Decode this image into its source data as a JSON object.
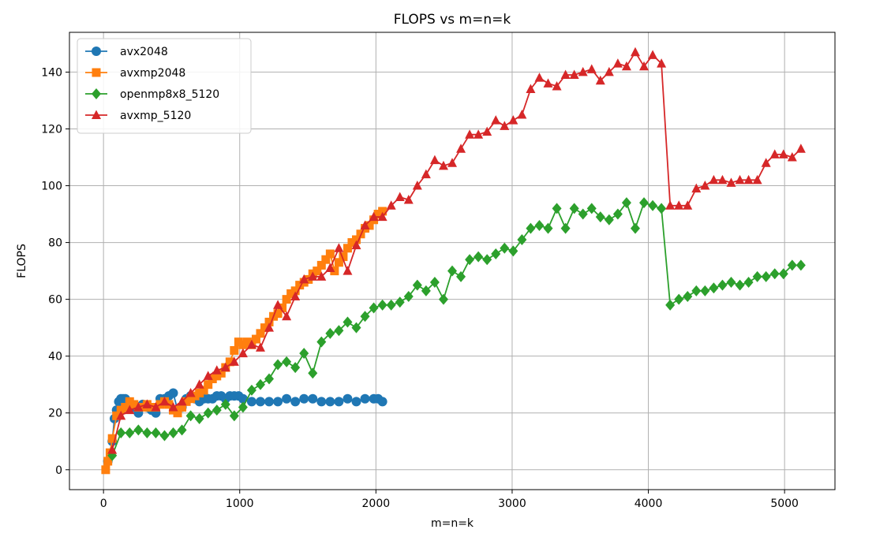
{
  "chart_data": {
    "type": "line",
    "title": "FLOPS vs m=n=k",
    "xlabel": "m=n=k",
    "ylabel": "FLOPS",
    "xlim": [
      -250,
      5370
    ],
    "ylim": [
      -7,
      154
    ],
    "xticks": [
      0,
      1000,
      2000,
      3000,
      4000,
      5000
    ],
    "xtick_labels": [
      "0",
      "1000",
      "2000",
      "3000",
      "4000",
      "5000"
    ],
    "yticks": [
      0,
      20,
      40,
      60,
      80,
      100,
      120,
      140
    ],
    "ytick_labels": [
      "0",
      "20",
      "40",
      "60",
      "80",
      "100",
      "120",
      "140"
    ],
    "grid": true,
    "legend_position": "upper-left",
    "series": [
      {
        "name": "avx2048",
        "color": "#1f77b4",
        "marker": "circle",
        "x": [
          32,
          64,
          80,
          96,
          112,
          128,
          144,
          160,
          176,
          192,
          224,
          256,
          288,
          320,
          352,
          384,
          416,
          448,
          480,
          512,
          544,
          576,
          608,
          640,
          672,
          704,
          736,
          768,
          800,
          832,
          864,
          896,
          928,
          960,
          992,
          1024,
          1088,
          1152,
          1216,
          1280,
          1344,
          1408,
          1472,
          1536,
          1600,
          1664,
          1728,
          1792,
          1856,
          1920,
          1984,
          2016,
          2048
        ],
        "y": [
          3,
          10,
          18,
          21,
          24,
          25,
          25,
          25,
          24,
          23,
          22,
          20,
          23,
          22,
          21,
          20,
          25,
          25,
          26,
          27,
          21,
          22,
          25,
          26,
          25,
          24,
          25,
          25,
          25,
          26,
          26,
          25,
          26,
          26,
          26,
          25,
          24,
          24,
          24,
          24,
          25,
          24,
          25,
          25,
          24,
          24,
          24,
          25,
          24,
          25,
          25,
          25,
          24
        ]
      },
      {
        "name": "avxmp2048",
        "color": "#ff7f0e",
        "marker": "square",
        "x": [
          16,
          32,
          48,
          64,
          96,
          128,
          160,
          192,
          224,
          256,
          288,
          320,
          352,
          384,
          416,
          448,
          480,
          512,
          544,
          576,
          608,
          640,
          672,
          704,
          736,
          768,
          800,
          832,
          864,
          896,
          928,
          960,
          992,
          1024,
          1056,
          1088,
          1120,
          1152,
          1184,
          1216,
          1248,
          1280,
          1312,
          1344,
          1376,
          1408,
          1440,
          1472,
          1504,
          1536,
          1568,
          1600,
          1632,
          1664,
          1696,
          1728,
          1760,
          1792,
          1824,
          1856,
          1888,
          1920,
          1952,
          1984,
          2016,
          2048
        ],
        "y": [
          0,
          3,
          6,
          11,
          19,
          21,
          22,
          24,
          23,
          22,
          22,
          23,
          22,
          22,
          23,
          24,
          23,
          21,
          20,
          22,
          24,
          25,
          26,
          27,
          28,
          30,
          32,
          33,
          34,
          36,
          38,
          42,
          45,
          44,
          45,
          44,
          46,
          48,
          50,
          52,
          54,
          55,
          57,
          60,
          62,
          63,
          65,
          66,
          67,
          69,
          70,
          72,
          74,
          76,
          70,
          73,
          75,
          78,
          80,
          81,
          83,
          85,
          86,
          88,
          90,
          91
        ]
      },
      {
        "name": "openmp8x8_5120",
        "color": "#2ca02c",
        "marker": "diamond",
        "x": [
          64,
          128,
          192,
          256,
          320,
          384,
          448,
          512,
          576,
          640,
          704,
          768,
          832,
          896,
          960,
          1024,
          1088,
          1152,
          1216,
          1280,
          1344,
          1408,
          1472,
          1536,
          1600,
          1664,
          1728,
          1792,
          1856,
          1920,
          1984,
          2048,
          2112,
          2176,
          2240,
          2304,
          2368,
          2432,
          2496,
          2560,
          2624,
          2688,
          2752,
          2816,
          2880,
          2944,
          3008,
          3072,
          3136,
          3200,
          3264,
          3328,
          3392,
          3456,
          3520,
          3584,
          3648,
          3712,
          3776,
          3840,
          3904,
          3968,
          4032,
          4096,
          4160,
          4224,
          4288,
          4352,
          4416,
          4480,
          4544,
          4608,
          4672,
          4736,
          4800,
          4864,
          4928,
          4992,
          5056,
          5120
        ],
        "y": [
          5,
          13,
          13,
          14,
          13,
          13,
          12,
          13,
          14,
          19,
          18,
          20,
          21,
          23,
          19,
          22,
          28,
          30,
          32,
          37,
          38,
          36,
          41,
          34,
          45,
          48,
          49,
          52,
          50,
          54,
          57,
          58,
          58,
          59,
          61,
          65,
          63,
          66,
          60,
          70,
          68,
          74,
          75,
          74,
          76,
          78,
          77,
          81,
          85,
          86,
          85,
          92,
          85,
          92,
          90,
          92,
          89,
          88,
          90,
          94,
          85,
          94,
          93,
          92,
          58,
          60,
          61,
          63,
          63,
          64,
          65,
          66,
          65,
          66,
          68,
          68,
          69,
          69,
          72,
          72
        ]
      },
      {
        "name": "avxmp_5120",
        "color": "#d62728",
        "marker": "triangle",
        "x": [
          64,
          128,
          192,
          256,
          320,
          384,
          448,
          512,
          576,
          640,
          704,
          768,
          832,
          896,
          960,
          1024,
          1088,
          1152,
          1216,
          1280,
          1344,
          1408,
          1472,
          1536,
          1600,
          1664,
          1728,
          1792,
          1856,
          1920,
          1984,
          2048,
          2112,
          2176,
          2240,
          2304,
          2368,
          2432,
          2496,
          2560,
          2624,
          2688,
          2752,
          2816,
          2880,
          2944,
          3008,
          3072,
          3136,
          3200,
          3264,
          3328,
          3392,
          3456,
          3520,
          3584,
          3648,
          3712,
          3776,
          3840,
          3904,
          3968,
          4032,
          4096,
          4160,
          4224,
          4288,
          4352,
          4416,
          4480,
          4544,
          4608,
          4672,
          4736,
          4800,
          4864,
          4928,
          4992,
          5056,
          5120
        ],
        "y": [
          7,
          19,
          21,
          22,
          23,
          22,
          24,
          22,
          24,
          27,
          30,
          33,
          35,
          36,
          38,
          41,
          44,
          43,
          50,
          58,
          54,
          61,
          67,
          68,
          68,
          71,
          78,
          70,
          79,
          86,
          89,
          89,
          93,
          96,
          95,
          100,
          104,
          109,
          107,
          108,
          113,
          118,
          118,
          119,
          123,
          121,
          123,
          125,
          134,
          138,
          136,
          135,
          139,
          139,
          140,
          141,
          137,
          140,
          143,
          142,
          147,
          142,
          146,
          143,
          93,
          93,
          93,
          99,
          100,
          102,
          102,
          101,
          102,
          102,
          102,
          108,
          111,
          111,
          110,
          113
        ]
      }
    ]
  }
}
